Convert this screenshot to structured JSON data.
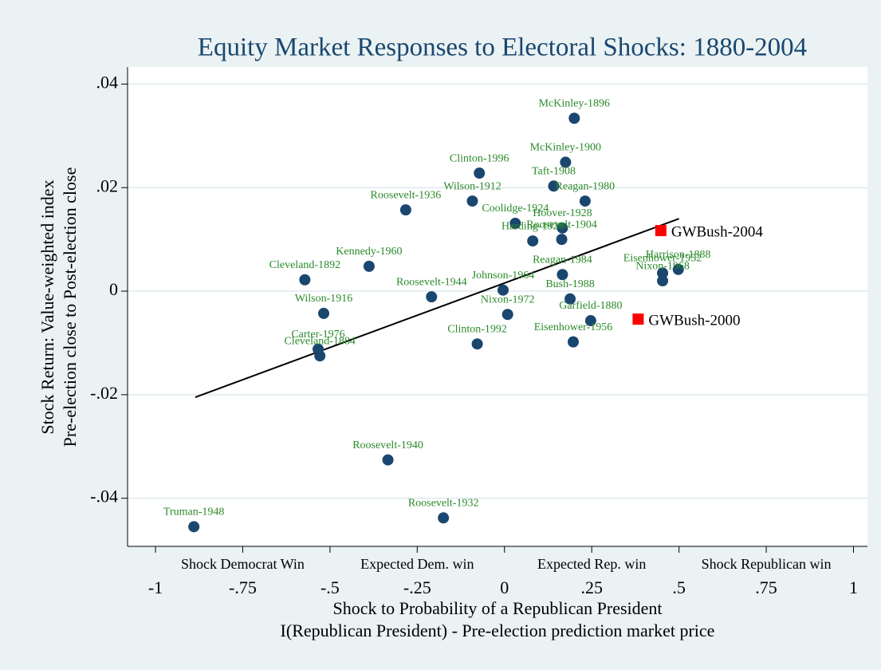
{
  "chart_data": {
    "type": "scatter",
    "title": "Equity Market Responses to Electoral Shocks: 1880-2004",
    "ylabel": [
      "Stock Return: Value-weighted index",
      "Pre-election close to Post-election close"
    ],
    "xlabel": [
      "Shock to Probability of a Republican President",
      "I(Republican President) - Pre-election prediction market price"
    ],
    "xlim": [
      -1.08,
      1.04
    ],
    "ylim": [
      -0.0493,
      0.0433
    ],
    "xticks": [
      {
        "value": -1,
        "label": "-1"
      },
      {
        "value": -0.75,
        "label": "-.75"
      },
      {
        "value": -0.5,
        "label": "-.5"
      },
      {
        "value": -0.25,
        "label": "-.25"
      },
      0,
      {
        "value": 0.25,
        "label": ".25"
      },
      {
        "value": 0.5,
        "label": ".5"
      },
      {
        "value": 0.75,
        "label": ".75"
      },
      1
    ],
    "yticks": [
      {
        "value": -0.04,
        "label": "-.04"
      },
      {
        "value": -0.02,
        "label": "-.02"
      },
      0,
      {
        "value": 0.02,
        "label": ".02"
      },
      {
        "value": 0.04,
        "label": ".04"
      }
    ],
    "x_annotations": [
      {
        "value": -0.75,
        "label": "Shock Democrat Win"
      },
      {
        "value": -0.25,
        "label": "Expected Dem. win"
      },
      {
        "value": 0.25,
        "label": "Expected Rep. win"
      },
      {
        "value": 0.75,
        "label": "Shock Republican win"
      }
    ],
    "grid": true,
    "series": [
      {
        "color": "#1a476f",
        "label_color": "#2a8a2a",
        "marker": "circle",
        "labels": [
          "McKinley-1896",
          "McKinley-1900",
          "Clinton-1996",
          "Taft-1908",
          "Wilson-1912",
          "Reagan-1980",
          "Roosevelt-1936",
          "Coolidge-1924",
          "Hoover-1928",
          "Roosevelt-1904",
          "Harding-1920",
          "Kennedy-1960",
          "Cleveland-1892",
          "Reagan-1984",
          "Harrison-1888",
          "Eisenhower-1952",
          "Nixon-1968",
          "Johnson-1964",
          "Roosevelt-1944",
          "Nixon-1972",
          "Bush-1988",
          "Wilson-1916",
          "Garfield-1880",
          "Eisenhower-1956",
          "Clinton-1992",
          "Carter-1976",
          "Cleveland-1884",
          "Roosevelt-1940",
          "Roosevelt-1932",
          "Truman-1948"
        ],
        "x": [
          0.2,
          0.175,
          -0.072,
          0.141,
          -0.092,
          0.231,
          -0.283,
          0.031,
          0.166,
          0.164,
          0.081,
          -0.388,
          -0.572,
          0.166,
          0.498,
          0.453,
          0.453,
          -0.004,
          -0.209,
          0.009,
          0.188,
          -0.518,
          0.247,
          0.197,
          -0.078,
          -0.534,
          -0.529,
          -0.334,
          -0.175,
          -0.89
        ],
        "y": [
          0.0334,
          0.0249,
          0.0228,
          0.0203,
          0.0174,
          0.0174,
          0.0157,
          0.0131,
          0.0122,
          0.01,
          0.0097,
          0.0048,
          0.0022,
          0.0032,
          0.0042,
          0.0035,
          0.002,
          0.0002,
          -0.0011,
          -0.0045,
          -0.0015,
          -0.0043,
          -0.0057,
          -0.0098,
          -0.0102,
          -0.0112,
          -0.0125,
          -0.0326,
          -0.0438,
          -0.0455
        ]
      },
      {
        "color": "#ff0000",
        "label_color": "#000000",
        "marker": "square",
        "labels": [
          "GWBush-2004",
          "GWBush-2000"
        ],
        "x": [
          0.448,
          0.383
        ],
        "y": [
          0.0117,
          -0.0054
        ]
      }
    ],
    "fit_line": {
      "color": "#000000",
      "x": [
        -0.886,
        0.5
      ],
      "y": [
        -0.0205,
        0.014
      ]
    }
  }
}
